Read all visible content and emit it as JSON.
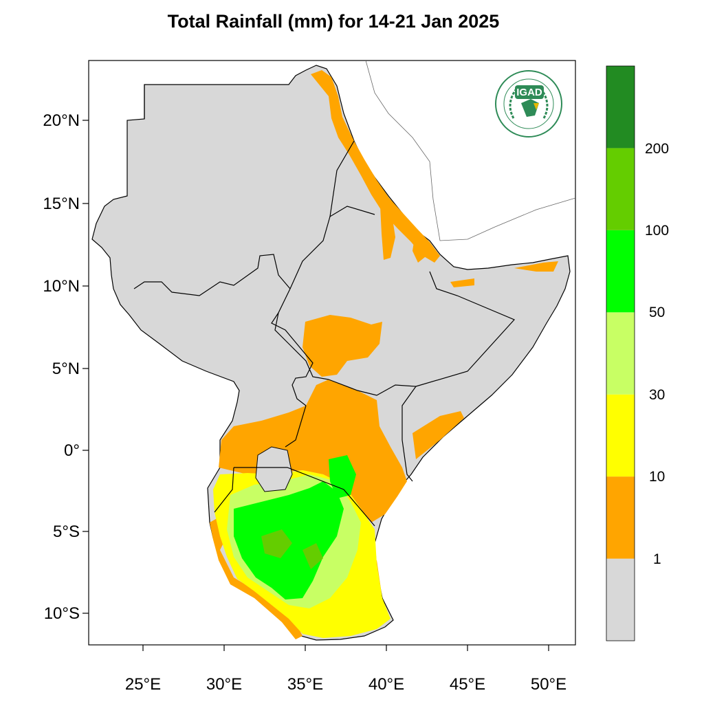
{
  "title": "Total Rainfall (mm) for 14-21 Jan 2025",
  "map": {
    "projection": "lat-lon",
    "extent": {
      "lon": [
        21.7,
        51.7
      ],
      "lat": [
        -11.8,
        23.9
      ]
    },
    "lat_ticks": [
      "20°N",
      "15°N",
      "10°N",
      "5°N",
      "0°",
      "5°S",
      "10°S"
    ],
    "lon_ticks": [
      "25°E",
      "30°E",
      "35°E",
      "40°E",
      "45°E",
      "50°E"
    ],
    "land_color_below_1mm": "#d8d8d8"
  },
  "logo": {
    "text": "IGAD",
    "ring_text_top": "INTERGOVERNMENTAL AUTHORITY ON DEVELOPMENT",
    "ring_text_bottom": "AUTORITÉ INTERGOUVERNEMENTALE POUR LE DÉVELOPPEMENT",
    "color": "#2e8b57"
  },
  "colorbar": {
    "labels": [
      "1",
      "10",
      "30",
      "50",
      "100",
      "200"
    ],
    "bins": [
      {
        "range": "<1",
        "color": "#d8d8d8"
      },
      {
        "range": "1-10",
        "color": "#ffa500"
      },
      {
        "range": "10-30",
        "color": "#ffff00"
      },
      {
        "range": "30-50",
        "color": "#c8ff64"
      },
      {
        "range": "50-100",
        "color": "#00ff00"
      },
      {
        "range": "100-200",
        "color": "#64cd00"
      },
      {
        "range": ">200",
        "color": "#228b22"
      }
    ]
  }
}
